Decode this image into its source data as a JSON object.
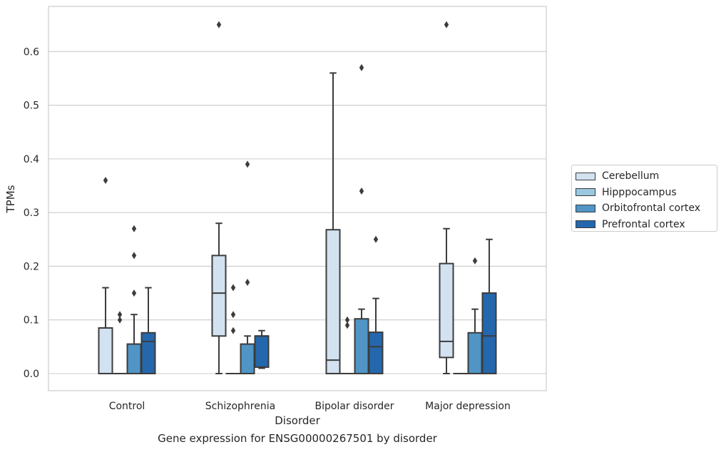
{
  "caption": "Gene expression for ENSG00000267501 by disorder",
  "chart_data": {
    "type": "box",
    "title": "",
    "xlabel": "Disorder",
    "ylabel": "TPMs",
    "ylim": [
      -0.032,
      0.684
    ],
    "yticks": [
      0.0,
      0.1,
      0.2,
      0.3,
      0.4,
      0.5,
      0.6
    ],
    "ytick_labels": [
      "0.0",
      "0.1",
      "0.2",
      "0.3",
      "0.4",
      "0.5",
      "0.6"
    ],
    "grid": true,
    "legend_position": "center-right",
    "categories": [
      "Control",
      "Schizophrenia",
      "Bipolar disorder",
      "Major depression"
    ],
    "series": [
      {
        "name": "Cerebellum",
        "color": "#d2e2f1",
        "boxes": [
          {
            "whisker_low": 0.0,
            "q1": 0.0,
            "median": 0.0,
            "q3": 0.085,
            "whisker_high": 0.16,
            "outliers": [
              0.36
            ]
          },
          {
            "whisker_low": 0.0,
            "q1": 0.07,
            "median": 0.15,
            "q3": 0.22,
            "whisker_high": 0.28,
            "outliers": [
              0.65
            ]
          },
          {
            "whisker_low": 0.0,
            "q1": 0.0,
            "median": 0.025,
            "q3": 0.268,
            "whisker_high": 0.56,
            "outliers": []
          },
          {
            "whisker_low": 0.0,
            "q1": 0.03,
            "median": 0.06,
            "q3": 0.205,
            "whisker_high": 0.27,
            "outliers": [
              0.65
            ]
          }
        ]
      },
      {
        "name": "Hipppocampus",
        "color": "#9ac8e0",
        "boxes": [
          {
            "whisker_low": 0.0,
            "q1": 0.0,
            "median": 0.0,
            "q3": 0.0,
            "whisker_high": 0.0,
            "outliers": [
              0.1,
              0.11
            ]
          },
          {
            "whisker_low": 0.0,
            "q1": 0.0,
            "median": 0.0,
            "q3": 0.0,
            "whisker_high": 0.0,
            "outliers": [
              0.08,
              0.11,
              0.16
            ]
          },
          {
            "whisker_low": 0.0,
            "q1": 0.0,
            "median": 0.0,
            "q3": 0.0,
            "whisker_high": 0.0,
            "outliers": [
              0.09,
              0.1
            ]
          },
          {
            "whisker_low": 0.0,
            "q1": 0.0,
            "median": 0.0,
            "q3": 0.0,
            "whisker_high": 0.0,
            "outliers": []
          }
        ]
      },
      {
        "name": "Orbitofrontal cortex",
        "color": "#5095c6",
        "boxes": [
          {
            "whisker_low": 0.0,
            "q1": 0.0,
            "median": 0.0,
            "q3": 0.055,
            "whisker_high": 0.11,
            "outliers": [
              0.15,
              0.22,
              0.27
            ]
          },
          {
            "whisker_low": 0.0,
            "q1": 0.0,
            "median": 0.0,
            "q3": 0.055,
            "whisker_high": 0.07,
            "outliers": [
              0.17,
              0.39
            ]
          },
          {
            "whisker_low": 0.0,
            "q1": 0.0,
            "median": 0.0,
            "q3": 0.102,
            "whisker_high": 0.12,
            "outliers": [
              0.34,
              0.57
            ]
          },
          {
            "whisker_low": 0.0,
            "q1": 0.0,
            "median": 0.0,
            "q3": 0.076,
            "whisker_high": 0.12,
            "outliers": [
              0.21
            ]
          }
        ]
      },
      {
        "name": "Prefrontal cortex",
        "color": "#2567ac",
        "boxes": [
          {
            "whisker_low": 0.0,
            "q1": 0.0,
            "median": 0.06,
            "q3": 0.076,
            "whisker_high": 0.16,
            "outliers": []
          },
          {
            "whisker_low": 0.01,
            "q1": 0.012,
            "median": 0.07,
            "q3": 0.07,
            "whisker_high": 0.08,
            "outliers": []
          },
          {
            "whisker_low": 0.0,
            "q1": 0.0,
            "median": 0.05,
            "q3": 0.077,
            "whisker_high": 0.14,
            "outliers": [
              0.25
            ]
          },
          {
            "whisker_low": 0.0,
            "q1": 0.0,
            "median": 0.07,
            "q3": 0.15,
            "whisker_high": 0.25,
            "outliers": []
          }
        ]
      }
    ]
  }
}
